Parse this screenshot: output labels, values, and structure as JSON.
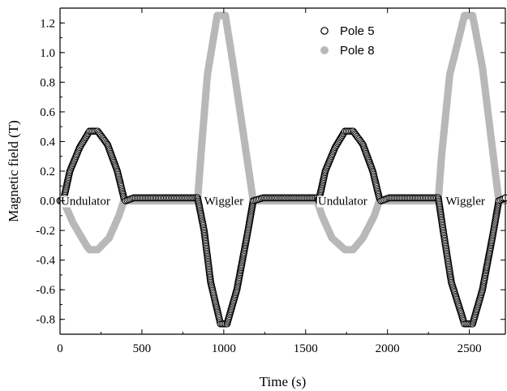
{
  "chart_data": {
    "type": "scatter",
    "xlabel": "Time (s)",
    "ylabel": "Magnetic field (T)",
    "xlim": [
      0,
      2720
    ],
    "ylim": [
      -0.9,
      1.3
    ],
    "xticks": [
      0,
      500,
      1000,
      1500,
      2000,
      2500
    ],
    "xtick_labels": [
      "0",
      "500",
      "1000",
      "1500",
      "2000",
      "2500"
    ],
    "yticks": [
      -0.8,
      -0.6,
      -0.4,
      -0.2,
      0.0,
      0.2,
      0.4,
      0.6,
      0.8,
      1.0,
      1.2
    ],
    "ytick_labels": [
      "-0.8",
      "-0.6",
      "-0.4",
      "-0.2",
      "0.0",
      "0.2",
      "0.4",
      "0.6",
      "0.8",
      "1.0",
      "1.2"
    ],
    "grid": false,
    "legend_position": "top-right",
    "series": [
      {
        "name": "Pole 5",
        "marker": "open-circle",
        "color": "#000000",
        "points": [
          [
            0,
            0.0
          ],
          [
            20,
            0.0
          ],
          [
            60,
            0.2
          ],
          [
            120,
            0.36
          ],
          [
            180,
            0.47
          ],
          [
            230,
            0.47
          ],
          [
            290,
            0.38
          ],
          [
            350,
            0.2
          ],
          [
            390,
            0.02
          ],
          [
            400,
            0.0
          ],
          [
            450,
            0.02
          ],
          [
            840,
            0.02
          ],
          [
            880,
            -0.2
          ],
          [
            920,
            -0.55
          ],
          [
            980,
            -0.83
          ],
          [
            1020,
            -0.83
          ],
          [
            1080,
            -0.6
          ],
          [
            1140,
            -0.25
          ],
          [
            1180,
            0.0
          ],
          [
            1240,
            0.02
          ],
          [
            1570,
            0.02
          ],
          [
            1580,
            0.0
          ],
          [
            1620,
            0.2
          ],
          [
            1680,
            0.36
          ],
          [
            1740,
            0.47
          ],
          [
            1790,
            0.47
          ],
          [
            1850,
            0.38
          ],
          [
            1910,
            0.2
          ],
          [
            1950,
            0.02
          ],
          [
            1960,
            0.0
          ],
          [
            2010,
            0.02
          ],
          [
            2310,
            0.02
          ],
          [
            2340,
            -0.2
          ],
          [
            2390,
            -0.55
          ],
          [
            2470,
            -0.83
          ],
          [
            2520,
            -0.83
          ],
          [
            2580,
            -0.6
          ],
          [
            2640,
            -0.25
          ],
          [
            2680,
            0.0
          ],
          [
            2720,
            0.02
          ]
        ]
      },
      {
        "name": "Pole 8",
        "marker": "filled-circle",
        "color": "#b8b8b8",
        "points": [
          [
            0,
            0.0
          ],
          [
            20,
            0.0
          ],
          [
            80,
            -0.15
          ],
          [
            160,
            -0.3
          ],
          [
            180,
            -0.33
          ],
          [
            230,
            -0.33
          ],
          [
            300,
            -0.25
          ],
          [
            360,
            -0.1
          ],
          [
            390,
            0.0
          ],
          [
            840,
            0.0
          ],
          [
            860,
            0.3
          ],
          [
            900,
            0.85
          ],
          [
            960,
            1.25
          ],
          [
            1010,
            1.25
          ],
          [
            1060,
            0.9
          ],
          [
            1120,
            0.45
          ],
          [
            1180,
            0.0
          ],
          [
            1570,
            0.0
          ],
          [
            1600,
            -0.1
          ],
          [
            1660,
            -0.25
          ],
          [
            1740,
            -0.33
          ],
          [
            1790,
            -0.33
          ],
          [
            1850,
            -0.25
          ],
          [
            1920,
            -0.1
          ],
          [
            1950,
            0.0
          ],
          [
            2310,
            0.0
          ],
          [
            2330,
            0.3
          ],
          [
            2380,
            0.85
          ],
          [
            2470,
            1.25
          ],
          [
            2520,
            1.25
          ],
          [
            2580,
            0.9
          ],
          [
            2630,
            0.45
          ],
          [
            2680,
            0.0
          ],
          [
            2720,
            0.0
          ]
        ]
      }
    ],
    "annotations": [
      {
        "text": "Undulator",
        "x": 5,
        "y": 0.0
      },
      {
        "text": "Wiggler",
        "x": 880,
        "y": 0.0
      },
      {
        "text": "Undulator",
        "x": 1575,
        "y": 0.0
      },
      {
        "text": "Wiggler",
        "x": 2355,
        "y": 0.0
      }
    ]
  }
}
